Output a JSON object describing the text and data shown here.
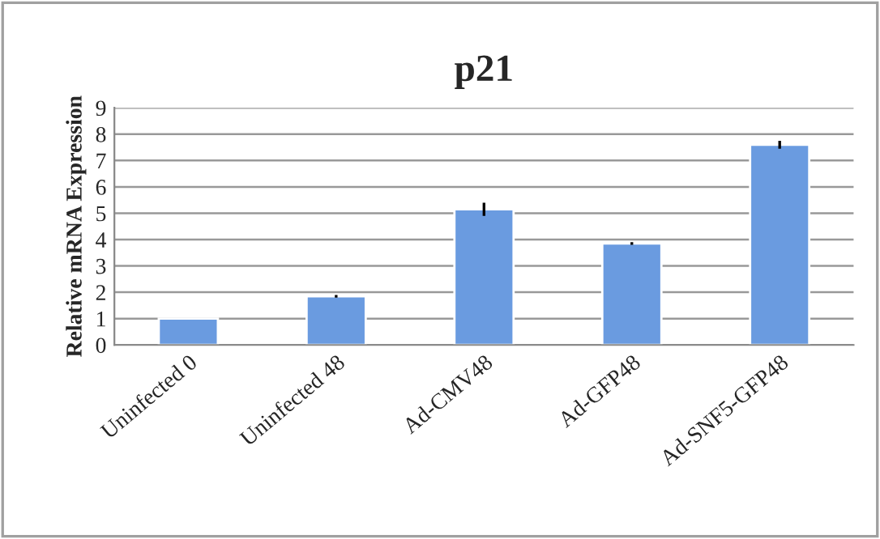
{
  "chart_data": {
    "type": "bar",
    "title": "p21",
    "ylabel": "Relative mRNA Expression",
    "categories": [
      "Uninfected 0",
      "Uninfected 48",
      "Ad-CMV48",
      "Ad-GFP48",
      "Ad-SNF5-GFP48"
    ],
    "values": [
      1.0,
      1.85,
      5.15,
      3.85,
      7.6
    ],
    "errors": [
      null,
      0.05,
      0.25,
      0.05,
      0.15
    ],
    "color": "#6a9be0",
    "ylim": [
      0,
      9
    ],
    "yticks": [
      0,
      1,
      2,
      3,
      4,
      5,
      6,
      7,
      8,
      9
    ],
    "grid": "y",
    "legend": false
  }
}
